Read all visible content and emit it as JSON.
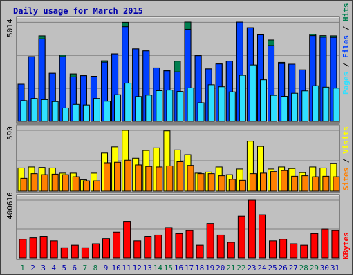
{
  "chart_data": {
    "type": "bar",
    "title": "Daily usage for March 2015",
    "categories": [
      "1",
      "2",
      "3",
      "4",
      "5",
      "6",
      "7",
      "8",
      "9",
      "10",
      "11",
      "12",
      "13",
      "14",
      "15",
      "16",
      "17",
      "18",
      "19",
      "20",
      "21",
      "22",
      "23",
      "24",
      "25",
      "26",
      "27",
      "28",
      "29",
      "30",
      "31"
    ],
    "weekend_days": [
      "1",
      "7",
      "8",
      "14",
      "15",
      "21",
      "22",
      "28",
      "29"
    ],
    "colors": {
      "background": "#c0c0c0",
      "plot_background": "#c0c0c0",
      "title": "#0000aa",
      "weekday_label": "#0000aa",
      "weekend_label": "#007040",
      "hits": "#007f50",
      "files": "#0040ff",
      "pages": "#30e0ff",
      "visits": "#ffff00",
      "sites": "#ff8000",
      "kbytes": "#ff0000"
    },
    "panels": [
      {
        "name": "hits-files-pages",
        "ymax_label": "5014",
        "legend": [
          {
            "text": "Pages",
            "color": "#30e0ff"
          },
          {
            "text": " / ",
            "color": "#000000"
          },
          {
            "text": "Files",
            "color": "#0040ff"
          },
          {
            "text": " / ",
            "color": "#000000"
          },
          {
            "text": "Hits",
            "color": "#007f50"
          }
        ],
        "ymax": 5014,
        "series": [
          {
            "name": "Hits",
            "values": [
              1880,
              3270,
              4320,
              2430,
              3350,
              2400,
              2310,
              2280,
              3060,
              3410,
              5000,
              3660,
              3560,
              2700,
              2580,
              3040,
              5014,
              3320,
              2650,
              2900,
              3040,
              5010,
              4730,
              4370,
              4110,
              2980,
              2890,
              2600,
              4400,
              4330,
              4320
            ]
          },
          {
            "name": "Files",
            "values": [
              1880,
              3270,
              4170,
              2430,
              3270,
              2250,
              2310,
              2280,
              2990,
              3410,
              4780,
              3660,
              3560,
              2700,
              2550,
              2500,
              4650,
              3320,
              2650,
              2900,
              3040,
              5010,
              4730,
              4370,
              3830,
              2920,
              2890,
              2600,
              4330,
              4250,
              4240
            ]
          },
          {
            "name": "Pages",
            "values": [
              1050,
              1160,
              1100,
              1000,
              680,
              860,
              830,
              1160,
              1020,
              1350,
              1930,
              1260,
              1330,
              1550,
              1580,
              1510,
              1690,
              940,
              1850,
              1750,
              1490,
              2330,
              2850,
              2100,
              1320,
              1270,
              1420,
              1540,
              1800,
              1730,
              1680
            ]
          }
        ]
      },
      {
        "name": "visits-sites",
        "ymax_label": "590",
        "legend": [
          {
            "text": "Sites",
            "color": "#ff8000"
          },
          {
            "text": " / ",
            "color": "#000000"
          },
          {
            "text": "Visits",
            "color": "#ffff00"
          }
        ],
        "ymax": 590,
        "series": [
          {
            "name": "Visits",
            "values": [
              225,
              235,
              230,
              225,
              175,
              175,
              110,
              175,
              370,
              430,
              590,
              320,
              395,
              420,
              585,
              400,
              355,
              175,
              185,
              235,
              160,
              215,
              485,
              435,
              215,
              235,
              220,
              180,
              235,
              225,
              270
            ]
          },
          {
            "name": "Sites",
            "values": [
              125,
              170,
              160,
              165,
              160,
              140,
              100,
              100,
              275,
              280,
              300,
              255,
              240,
              235,
              245,
              285,
              250,
              170,
              170,
              150,
              115,
              105,
              170,
              175,
              190,
              200,
              145,
              150,
              140,
              145,
              140
            ]
          }
        ]
      },
      {
        "name": "kbytes",
        "ymax_label": "400616",
        "legend": [
          {
            "text": "KBytes",
            "color": "#ff0000"
          }
        ],
        "ymax": 400616,
        "series": [
          {
            "name": "KBytes",
            "values": [
              130000,
              140000,
              150000,
              120000,
              70000,
              90000,
              70000,
              100000,
              135000,
              180000,
              250000,
              120000,
              150000,
              160000,
              210000,
              170000,
              190000,
              90000,
              240000,
              160000,
              110000,
              290000,
              400616,
              300000,
              120000,
              130000,
              100000,
              90000,
              170000,
              200000,
              190000
            ]
          }
        ]
      }
    ]
  }
}
